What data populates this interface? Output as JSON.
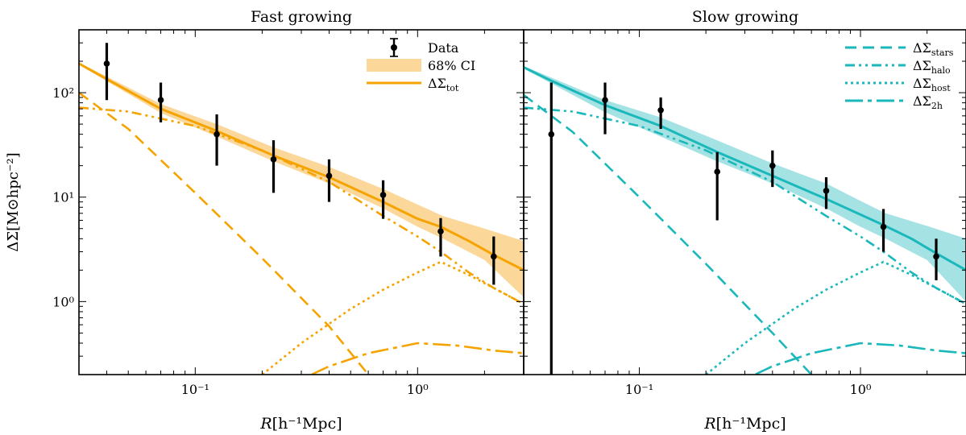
{
  "chart_data": {
    "type": "line",
    "shared": {
      "xlabel_main": "R",
      "xlabel_unit": "[h⁻¹Mpc]",
      "ylabel": "ΔΣ[M⊙hpc⁻²]",
      "x_scale": "log",
      "y_scale": "log",
      "xlim": [
        0.03,
        3.0
      ],
      "ylim": [
        0.2,
        400
      ],
      "x_ticks": [
        {
          "value": 0.1,
          "label": "10⁻¹"
        },
        {
          "value": 1.0,
          "label": "10⁰"
        }
      ],
      "y_ticks": [
        {
          "value": 1,
          "label": "10⁰"
        },
        {
          "value": 10,
          "label": "10¹"
        },
        {
          "value": 100,
          "label": "10²"
        }
      ]
    },
    "panels": [
      {
        "title": "Fast growing",
        "color": "#f5a300",
        "band_color": "#fbd89a",
        "legend_position": "top-right",
        "legend": [
          {
            "key": "data",
            "text": "Data"
          },
          {
            "key": "ci",
            "text": "68% CI"
          },
          {
            "key": "tot",
            "main": "ΔΣ",
            "sub": "tot"
          }
        ],
        "data_points": {
          "x": [
            0.04,
            0.07,
            0.125,
            0.225,
            0.4,
            0.7,
            1.27,
            2.2
          ],
          "y": [
            190,
            85,
            40,
            23,
            16,
            10.5,
            4.7,
            2.7
          ],
          "y_low": [
            85,
            52,
            20,
            11,
            9,
            6.2,
            2.7,
            1.45
          ],
          "y_high": [
            300,
            125,
            62,
            35,
            23,
            14.5,
            6.3,
            4.2
          ]
        },
        "series": [
          {
            "key": "tot",
            "x": [
              0.03,
              0.04,
              0.07,
              0.125,
              0.225,
              0.4,
              0.7,
              1.0,
              1.27,
              1.7,
              2.2,
              3.0
            ],
            "y": [
              190,
              135,
              70,
              43,
              25,
              15.5,
              9,
              6.2,
              5.2,
              3.8,
              2.8,
              2.0
            ]
          },
          {
            "key": "stars",
            "x": [
              0.03,
              0.05,
              0.1,
              0.2,
              0.4,
              0.6
            ],
            "y": [
              100,
              45,
              11,
              2.6,
              0.58,
              0.2
            ]
          },
          {
            "key": "halo",
            "x": [
              0.03,
              0.05,
              0.1,
              0.2,
              0.4,
              0.7,
              1.0,
              1.27,
              1.7,
              2.2,
              3.0
            ],
            "y": [
              72,
              66,
              48,
              28,
              14,
              6.6,
              4.2,
              3.0,
              1.9,
              1.35,
              0.95
            ]
          },
          {
            "key": "host",
            "x": [
              0.2,
              0.3,
              0.5,
              0.7,
              1.0,
              1.27,
              1.7,
              2.2,
              3.0
            ],
            "y": [
              0.2,
              0.4,
              0.85,
              1.3,
              1.9,
              2.4,
              1.8,
              1.35,
              0.95
            ]
          },
          {
            "key": "twoh",
            "x": [
              0.25,
              0.4,
              0.6,
              1.0,
              1.5,
              2.2,
              3.0
            ],
            "y": [
              0.15,
              0.24,
              0.32,
              0.4,
              0.38,
              0.34,
              0.32
            ]
          }
        ],
        "band": {
          "x": [
            0.03,
            0.07,
            0.125,
            0.225,
            0.4,
            0.7,
            1.0,
            1.3,
            2.0,
            3.0
          ],
          "low": [
            185,
            64,
            38,
            22,
            13.5,
            7.8,
            5.2,
            4.0,
            2.5,
            1.1
          ],
          "high": [
            195,
            78,
            50,
            30,
            19.5,
            12,
            8.5,
            6.6,
            5.0,
            3.8
          ]
        }
      },
      {
        "title": "Slow growing",
        "color": "#1ab8bb",
        "band_color": "#a4e2e3",
        "legend_position": "top-right",
        "legend": [
          {
            "key": "stars",
            "main": "ΔΣ",
            "sub": "stars"
          },
          {
            "key": "halo",
            "main": "ΔΣ",
            "sub": "halo"
          },
          {
            "key": "host",
            "main": "ΔΣ",
            "sub": "host"
          },
          {
            "key": "twoh",
            "main": "ΔΣ",
            "sub": "2h"
          }
        ],
        "data_points": {
          "x": [
            0.04,
            0.07,
            0.125,
            0.225,
            0.4,
            0.7,
            1.27,
            2.2
          ],
          "y": [
            40,
            85,
            68,
            17.5,
            20,
            11.5,
            5.2,
            2.7
          ],
          "y_low": [
            0.15,
            40,
            45,
            6,
            12.5,
            7.7,
            3.0,
            1.6
          ],
          "y_high": [
            125,
            125,
            90,
            27,
            28,
            15.5,
            7.7,
            4.0
          ]
        },
        "series": [
          {
            "key": "tot",
            "x": [
              0.03,
              0.04,
              0.07,
              0.125,
              0.225,
              0.4,
              0.7,
              1.0,
              1.27,
              1.7,
              2.2,
              3.0
            ],
            "y": [
              175,
              130,
              76,
              48,
              27,
              16,
              9.6,
              6.8,
              5.4,
              4.0,
              2.9,
              2.0
            ]
          },
          {
            "key": "stars",
            "x": [
              0.03,
              0.05,
              0.1,
              0.2,
              0.4,
              0.6
            ],
            "y": [
              95,
              42,
              10,
              2.3,
              0.5,
              0.2
            ]
          },
          {
            "key": "halo",
            "x": [
              0.03,
              0.05,
              0.1,
              0.2,
              0.4,
              0.7,
              1.0,
              1.27,
              1.7,
              2.2,
              3.0
            ],
            "y": [
              72,
              66,
              48,
              28,
              14,
              6.6,
              4.2,
              3.0,
              1.9,
              1.35,
              0.95
            ]
          },
          {
            "key": "host",
            "x": [
              0.2,
              0.3,
              0.5,
              0.7,
              1.0,
              1.27,
              1.7,
              2.2,
              3.0
            ],
            "y": [
              0.2,
              0.4,
              0.85,
              1.3,
              1.9,
              2.4,
              1.8,
              1.35,
              0.95
            ]
          },
          {
            "key": "twoh",
            "x": [
              0.25,
              0.4,
              0.6,
              1.0,
              1.5,
              2.2,
              3.0
            ],
            "y": [
              0.15,
              0.24,
              0.32,
              0.4,
              0.38,
              0.34,
              0.32
            ]
          }
        ],
        "band": {
          "x": [
            0.03,
            0.07,
            0.125,
            0.225,
            0.4,
            0.7,
            1.0,
            1.3,
            2.0,
            3.0
          ],
          "low": [
            170,
            65,
            38,
            22,
            13.5,
            7.8,
            5.2,
            4.0,
            2.5,
            1.0
          ],
          "high": [
            180,
            85,
            58,
            35,
            21,
            13.5,
            9.2,
            7.0,
            5.3,
            4.0
          ]
        }
      }
    ]
  }
}
